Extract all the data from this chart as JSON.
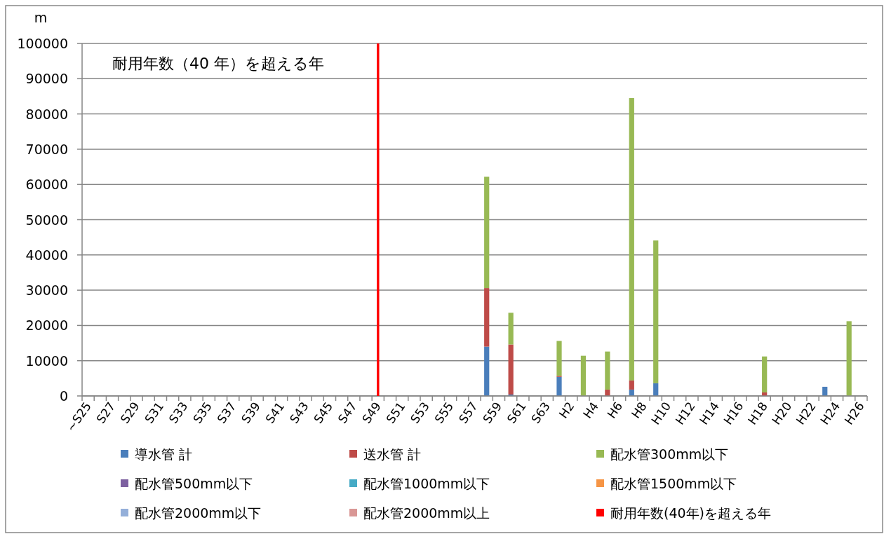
{
  "chart_data": {
    "type": "bar",
    "stacked": true,
    "ylabel": "m",
    "ylim": [
      0,
      100000
    ],
    "yticks": [
      0,
      10000,
      20000,
      30000,
      40000,
      50000,
      60000,
      70000,
      80000,
      90000,
      100000
    ],
    "grid": "y",
    "legend": "bottom",
    "categories": [
      "~S25",
      null,
      "S27",
      null,
      "S29",
      null,
      "S31",
      null,
      "S33",
      null,
      "S35",
      null,
      "S37",
      null,
      "S39",
      null,
      "S41",
      null,
      "S43",
      null,
      "S45",
      null,
      "S47",
      null,
      "S49",
      null,
      "S51",
      null,
      "S53",
      null,
      "S55",
      null,
      "S57",
      null,
      "S59",
      null,
      "S61",
      null,
      "S63",
      null,
      "H2",
      null,
      "H4",
      null,
      "H6",
      null,
      "H8",
      null,
      "H10",
      null,
      "H12",
      null,
      "H14",
      null,
      "H16",
      null,
      "H18",
      null,
      "H20",
      null,
      "H22",
      null,
      "H24",
      null,
      "H26"
    ],
    "series": [
      {
        "name": "導水管 計",
        "color": "#4a7ebb",
        "values": [
          null,
          null,
          null,
          null,
          null,
          null,
          null,
          null,
          null,
          null,
          null,
          null,
          null,
          null,
          null,
          null,
          null,
          null,
          null,
          null,
          null,
          null,
          null,
          null,
          null,
          null,
          null,
          null,
          null,
          null,
          null,
          null,
          null,
          14000,
          null,
          400,
          null,
          null,
          null,
          5400,
          null,
          null,
          null,
          null,
          null,
          1800,
          null,
          3600,
          null,
          null,
          null,
          null,
          null,
          null,
          null,
          null,
          null,
          null,
          null,
          null,
          null,
          2600,
          null,
          null,
          null
        ]
      },
      {
        "name": "送水管 計",
        "color": "#be4b48",
        "values": [
          null,
          null,
          null,
          null,
          null,
          null,
          null,
          null,
          null,
          null,
          null,
          null,
          null,
          null,
          null,
          null,
          null,
          null,
          null,
          null,
          null,
          null,
          null,
          null,
          null,
          null,
          null,
          null,
          null,
          null,
          null,
          null,
          null,
          16600,
          null,
          14200,
          null,
          null,
          null,
          300,
          null,
          null,
          null,
          1800,
          null,
          2600,
          null,
          null,
          null,
          null,
          null,
          null,
          null,
          null,
          null,
          null,
          1000,
          null,
          null,
          null,
          null,
          null,
          null,
          null,
          null
        ]
      },
      {
        "name": "配水管300mm以下",
        "color": "#98b954",
        "values": [
          null,
          null,
          null,
          null,
          null,
          null,
          null,
          null,
          null,
          null,
          null,
          null,
          null,
          null,
          null,
          null,
          null,
          null,
          null,
          null,
          null,
          null,
          null,
          null,
          null,
          null,
          null,
          null,
          null,
          null,
          null,
          null,
          null,
          31600,
          null,
          9000,
          null,
          null,
          null,
          9900,
          null,
          11400,
          null,
          10800,
          null,
          80100,
          null,
          40500,
          null,
          null,
          null,
          null,
          null,
          null,
          null,
          null,
          10200,
          null,
          null,
          null,
          null,
          null,
          null,
          21200,
          null
        ]
      },
      {
        "name": "配水管500mm以下",
        "color": "#7d60a0",
        "values": [
          null,
          null,
          null,
          null,
          null,
          null,
          null,
          null,
          null,
          null,
          null,
          null,
          null,
          null,
          null,
          null,
          null,
          null,
          null,
          null,
          null,
          null,
          null,
          null,
          null,
          null,
          null,
          null,
          null,
          null,
          null,
          null,
          null,
          null,
          null,
          null,
          null,
          null,
          null,
          null,
          null,
          null,
          null,
          null,
          null,
          null,
          null,
          null,
          null,
          null,
          null,
          null,
          null,
          null,
          null,
          null,
          null,
          null,
          null,
          null,
          null,
          null,
          null,
          null,
          null
        ]
      },
      {
        "name": "配水管1000mm以下",
        "color": "#46aac5",
        "values": [
          null,
          null,
          null,
          null,
          null,
          null,
          null,
          null,
          null,
          null,
          null,
          null,
          null,
          null,
          null,
          null,
          null,
          null,
          null,
          null,
          null,
          null,
          null,
          null,
          null,
          null,
          null,
          null,
          null,
          null,
          null,
          null,
          null,
          null,
          null,
          null,
          null,
          null,
          null,
          null,
          null,
          null,
          null,
          null,
          null,
          null,
          null,
          null,
          null,
          null,
          null,
          null,
          null,
          null,
          null,
          null,
          null,
          null,
          null,
          null,
          null,
          null,
          null,
          null,
          null
        ]
      },
      {
        "name": "配水管1500mm以下",
        "color": "#f69545",
        "values": [
          null,
          null,
          null,
          null,
          null,
          null,
          null,
          null,
          null,
          null,
          null,
          null,
          null,
          null,
          null,
          null,
          null,
          null,
          null,
          null,
          null,
          null,
          null,
          null,
          null,
          null,
          null,
          null,
          null,
          null,
          null,
          null,
          null,
          null,
          null,
          null,
          null,
          null,
          null,
          null,
          null,
          null,
          null,
          null,
          null,
          null,
          null,
          null,
          null,
          null,
          null,
          null,
          null,
          null,
          null,
          null,
          null,
          null,
          null,
          null,
          null,
          null,
          null,
          null,
          null
        ]
      },
      {
        "name": "配水管2000mm以下",
        "color": "#94afd9",
        "values": [
          null,
          null,
          null,
          null,
          null,
          null,
          null,
          null,
          null,
          null,
          null,
          null,
          null,
          null,
          null,
          null,
          null,
          null,
          null,
          null,
          null,
          null,
          null,
          null,
          null,
          null,
          null,
          null,
          null,
          null,
          null,
          null,
          null,
          null,
          null,
          null,
          null,
          null,
          null,
          null,
          null,
          null,
          null,
          null,
          null,
          null,
          null,
          null,
          null,
          null,
          null,
          null,
          null,
          null,
          null,
          null,
          null,
          null,
          null,
          null,
          null,
          null,
          null,
          null,
          null
        ]
      },
      {
        "name": "配水管2000mm以上",
        "color": "#d99795",
        "values": [
          null,
          null,
          null,
          null,
          null,
          null,
          null,
          null,
          null,
          null,
          null,
          null,
          null,
          null,
          null,
          null,
          null,
          null,
          null,
          null,
          null,
          null,
          null,
          null,
          null,
          null,
          null,
          null,
          null,
          null,
          null,
          null,
          null,
          null,
          null,
          null,
          null,
          null,
          null,
          null,
          null,
          null,
          null,
          null,
          null,
          null,
          null,
          null,
          null,
          null,
          null,
          null,
          null,
          null,
          null,
          null,
          null,
          null,
          null,
          null,
          null,
          null,
          null,
          null,
          null
        ]
      }
    ],
    "ref_lines": [
      {
        "axis": "x",
        "value": "S49",
        "label": "耐用年数(40年)を超える年",
        "color": "#ff0000"
      }
    ],
    "annotations": [
      "耐用年数（40 年）を超える年"
    ]
  }
}
